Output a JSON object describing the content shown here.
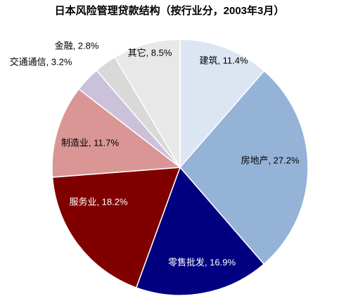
{
  "chart_data": {
    "type": "pie",
    "title": "日本风险管理贷款结构（按行业分，2003年3月）",
    "values": [
      11.4,
      27.2,
      16.9,
      18.2,
      11.7,
      3.2,
      2.8,
      8.5
    ],
    "value_labels": [
      "建筑, 11.4%",
      "房地产, 27.2%",
      "零售批发, 16.9%",
      "服务业, 18.2%",
      "制造业, 11.7%",
      "交通通信, 3.2%",
      "金融, 2.8%",
      "其它, 8.5%"
    ],
    "colors": [
      "#dce6f2",
      "#95b3d7",
      "#000080",
      "#800000",
      "#d99694",
      "#ccc1da",
      "#d9d9d9",
      "#e8e8e8"
    ],
    "start_angle": 0,
    "direction": "clockwise"
  }
}
